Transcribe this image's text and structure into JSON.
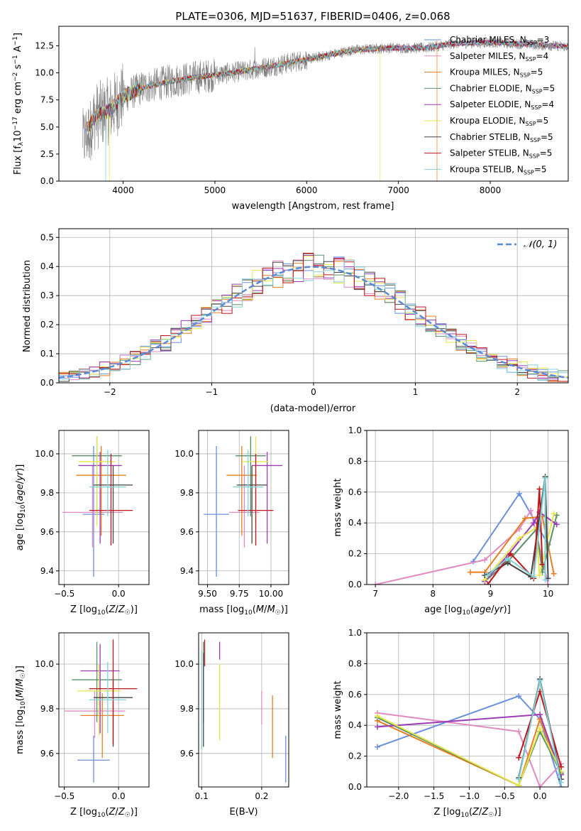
{
  "colors": [
    "#6a8fdc",
    "#e08bc0",
    "#e67e22",
    "#5a8f6a",
    "#9b3bb5",
    "#e6e64a",
    "#444444",
    "#c0151b",
    "#7fd3d8"
  ],
  "legend": [
    "Chrabier MILES",
    "Salpeter MILES",
    "Kroupa MILES",
    "Chabrier ELODIE",
    "Salpeter ELODIE",
    "Kroupa ELODIE",
    "Chabrier STELIB",
    "Salpeter STELIB",
    "Kroupa STELIB"
  ],
  "legend_nssp": [
    "3",
    "4",
    "5",
    "5",
    "4",
    "5",
    "5",
    "5",
    "5"
  ],
  "chart_data": [
    {
      "type": "line",
      "title": "PLATE=0306, MJD=51637, FIBERID=0406, z=0.068",
      "xlabel": "wavelength [Angstrom, rest frame]",
      "ylabel": "Flux [f",
      "xlim": [
        3300,
        8850
      ],
      "ylim": [
        0,
        14.3
      ],
      "xticks": [
        4000,
        5000,
        6000,
        7000,
        8000
      ],
      "yticks": [
        0.0,
        2.5,
        5.0,
        7.5,
        10.0,
        12.5
      ],
      "ytick_labels": [
        "0.0",
        "2.5",
        "5.0",
        "7.5",
        "10.0",
        "12.5"
      ],
      "spectrum_nodes": [
        [
          3550,
          4.2
        ],
        [
          3700,
          6.0
        ],
        [
          3850,
          6.5
        ],
        [
          4000,
          7.8
        ],
        [
          4200,
          8.6
        ],
        [
          4500,
          9.2
        ],
        [
          4800,
          9.6
        ],
        [
          5100,
          9.9
        ],
        [
          5400,
          10.3
        ],
        [
          5800,
          10.9
        ],
        [
          6100,
          11.4
        ],
        [
          6500,
          12.1
        ],
        [
          6900,
          12.3
        ],
        [
          7300,
          12.3
        ],
        [
          7600,
          12.7
        ],
        [
          8000,
          12.8
        ],
        [
          8500,
          12.6
        ],
        [
          8850,
          12.4
        ]
      ],
      "series": [
        {
          "name": "Chabrier MILES",
          "nssp": 3
        },
        {
          "name": "Salpeter MILES",
          "nssp": 4
        },
        {
          "name": "Kroupa MILES",
          "nssp": 5
        },
        {
          "name": "Chabrier ELODIE",
          "nssp": 5
        },
        {
          "name": "Salpeter ELODIE",
          "nssp": 4
        },
        {
          "name": "Kroupa ELODIE",
          "nssp": 5
        },
        {
          "name": "Chabrier STELIB",
          "nssp": 5
        },
        {
          "name": "Salpeter STELIB",
          "nssp": 5
        },
        {
          "name": "Kroupa STELIB",
          "nssp": 5
        }
      ]
    },
    {
      "type": "line",
      "xlabel": "(data-model)/error",
      "ylabel": "Normed distribution",
      "xlim": [
        -2.5,
        2.5
      ],
      "ylim": [
        0,
        0.53
      ],
      "xticks": [
        -2,
        -1,
        0,
        1,
        2
      ],
      "xtick_labels": [
        "−2",
        "−1",
        "0",
        "1",
        "2"
      ],
      "yticks": [
        0.0,
        0.1,
        0.2,
        0.3,
        0.4,
        0.5
      ],
      "ytick_labels": [
        "0.0",
        "0.1",
        "0.2",
        "0.3",
        "0.4",
        "0.5"
      ],
      "gaussian_label": "𝒩(0, 1)",
      "bin_width": 0.1,
      "grid": true
    },
    {
      "type": "scatter",
      "xlabel": "Z [log10(Z/Z☉)]",
      "ylabel": "age [log10(age/yr)]",
      "xlim": [
        -0.55,
        0.28
      ],
      "ylim": [
        9.33,
        10.12
      ],
      "xticks": [
        -0.5,
        0.0
      ],
      "xtick_labels": [
        "−0.5",
        "0.0"
      ],
      "yticks": [
        9.4,
        9.6,
        9.8,
        10.0
      ],
      "ytick_labels": [
        "9.4",
        "9.6",
        "9.8",
        "10.0"
      ],
      "points": [
        {
          "x": -0.23,
          "y": 9.69,
          "xerr": 0.1,
          "yerr": [
            0.32,
            0.35
          ]
        },
        {
          "x": -0.24,
          "y": 9.7,
          "xerr": 0.28,
          "yerr": [
            0.18,
            0.24
          ]
        },
        {
          "x": -0.16,
          "y": 9.89,
          "xerr": 0.23,
          "yerr": [
            0.31,
            0.15
          ]
        },
        {
          "x": -0.2,
          "y": 9.99,
          "xerr": 0.23,
          "yerr": [
            0.31,
            0.1
          ]
        },
        {
          "x": -0.17,
          "y": 9.94,
          "xerr": 0.2,
          "yerr": [
            0.4,
            0.07
          ]
        },
        {
          "x": -0.2,
          "y": 9.96,
          "xerr": 0.17,
          "yerr": [
            0.33,
            0.13
          ]
        },
        {
          "x": -0.05,
          "y": 9.84,
          "xerr": 0.18,
          "yerr": [
            0.3,
            0.1
          ]
        },
        {
          "x": -0.07,
          "y": 9.71,
          "xerr": 0.2,
          "yerr": [
            0.18,
            0.29
          ]
        },
        {
          "x": -0.1,
          "y": 9.83,
          "xerr": 0.17,
          "yerr": [
            0.15,
            0.19
          ]
        }
      ]
    },
    {
      "type": "scatter",
      "xlabel": "mass [log10(M/M☉)]",
      "ylabel": "",
      "xlim": [
        9.43,
        10.14
      ],
      "ylim": [
        9.33,
        10.12
      ],
      "xticks": [
        9.5,
        9.75,
        10.0
      ],
      "xtick_labels": [
        "9.50",
        "9.75",
        "10.00"
      ],
      "yticks": [
        9.4,
        9.6,
        9.8,
        10.0
      ],
      "ytick_labels": [
        "9.4",
        "9.6",
        "9.8",
        "10.0"
      ],
      "points": [
        {
          "x": 9.57,
          "y": 9.69,
          "xerr": 0.1,
          "yerr": [
            0.32,
            0.35
          ]
        },
        {
          "x": 9.79,
          "y": 9.7,
          "xerr": 0.12,
          "yerr": [
            0.18,
            0.24
          ]
        },
        {
          "x": 9.77,
          "y": 9.89,
          "xerr": 0.12,
          "yerr": [
            0.31,
            0.15
          ]
        },
        {
          "x": 9.84,
          "y": 9.99,
          "xerr": 0.12,
          "yerr": [
            0.31,
            0.1
          ]
        },
        {
          "x": 9.97,
          "y": 9.94,
          "xerr": 0.12,
          "yerr": [
            0.4,
            0.07
          ]
        },
        {
          "x": 9.88,
          "y": 9.96,
          "xerr": 0.1,
          "yerr": [
            0.33,
            0.13
          ]
        },
        {
          "x": 9.85,
          "y": 9.84,
          "xerr": 0.12,
          "yerr": [
            0.3,
            0.1
          ]
        },
        {
          "x": 9.88,
          "y": 9.71,
          "xerr": 0.14,
          "yerr": [
            0.18,
            0.29
          ]
        },
        {
          "x": 9.82,
          "y": 9.83,
          "xerr": 0.12,
          "yerr": [
            0.15,
            0.19
          ]
        }
      ]
    },
    {
      "type": "line",
      "xlabel": "age [log10(age/yr)]",
      "ylabel": "mass weight",
      "xlim": [
        6.85,
        10.35
      ],
      "ylim": [
        0,
        1.0
      ],
      "xticks": [
        7,
        8,
        9,
        10
      ],
      "xtick_labels": [
        "7",
        "8",
        "9",
        "10"
      ],
      "yticks": [
        0.0,
        0.2,
        0.4,
        0.6,
        0.8,
        1.0
      ],
      "ytick_labels": [
        "0.0",
        "0.2",
        "0.4",
        "0.6",
        "0.8",
        "1.0"
      ],
      "series": [
        {
          "x": [
            8.7,
            9.5,
            10.0,
            10.0
          ],
          "y": [
            0.15,
            0.59,
            0.26,
            0.26
          ]
        },
        {
          "x": [
            7.0,
            8.9,
            9.5,
            9.7,
            10.0
          ],
          "y": [
            0.0,
            0.16,
            0.36,
            0.48,
            0.0
          ]
        },
        {
          "x": [
            8.65,
            8.9,
            9.6,
            9.9,
            10.1
          ],
          "y": [
            0.08,
            0.08,
            0.43,
            0.44,
            0.07
          ]
        },
        {
          "x": [
            8.9,
            9.3,
            9.8,
            9.9,
            10.15
          ],
          "y": [
            0.02,
            0.15,
            0.36,
            0.08,
            0.45
          ]
        },
        {
          "x": [
            8.9,
            9.3,
            9.75,
            9.85,
            10.15
          ],
          "y": [
            0.02,
            0.19,
            0.4,
            0.47,
            0.39
          ]
        },
        {
          "x": [
            8.9,
            9.5,
            9.8,
            9.85,
            10.1
          ],
          "y": [
            0.03,
            0.3,
            0.37,
            0.06,
            0.46
          ]
        },
        {
          "x": [
            8.9,
            9.3,
            9.7,
            9.95,
            10.0
          ],
          "y": [
            0.06,
            0.14,
            0.05,
            0.7,
            0.04
          ]
        },
        {
          "x": [
            8.95,
            9.35,
            9.75,
            9.85,
            9.9
          ],
          "y": [
            0.0,
            0.2,
            0.04,
            0.62,
            0.13
          ]
        },
        {
          "x": [
            8.95,
            9.3,
            9.75,
            9.95,
            9.95
          ],
          "y": [
            0.06,
            0.17,
            0.05,
            0.69,
            0.03
          ]
        }
      ]
    },
    {
      "type": "scatter",
      "xlabel": "Z [log10(Z/Z☉)]",
      "ylabel": "mass [log10(M/M☉)]",
      "xlim": [
        -0.55,
        0.28
      ],
      "ylim": [
        9.45,
        10.14
      ],
      "xticks": [
        -0.5,
        0.0
      ],
      "xtick_labels": [
        "−0.5",
        "0.0"
      ],
      "yticks": [
        9.6,
        9.8,
        10.0
      ],
      "ytick_labels": [
        "9.6",
        "9.8",
        "10.0"
      ],
      "points": [
        {
          "x": -0.23,
          "y": 9.57,
          "xerr": 0.15,
          "yerr": [
            0.1,
            0.11
          ]
        },
        {
          "x": -0.22,
          "y": 9.79,
          "xerr": 0.28,
          "yerr": [
            0.12,
            0.09
          ]
        },
        {
          "x": -0.15,
          "y": 9.77,
          "xerr": 0.2,
          "yerr": [
            0.19,
            0.1
          ]
        },
        {
          "x": -0.2,
          "y": 9.93,
          "xerr": 0.23,
          "yerr": [
            0.19,
            0.17
          ]
        },
        {
          "x": -0.17,
          "y": 9.97,
          "xerr": 0.18,
          "yerr": [
            0.28,
            0.12
          ]
        },
        {
          "x": -0.18,
          "y": 9.88,
          "xerr": 0.2,
          "yerr": [
            0.2,
            0.12
          ]
        },
        {
          "x": -0.05,
          "y": 9.85,
          "xerr": 0.18,
          "yerr": [
            0.22,
            0.08
          ]
        },
        {
          "x": -0.05,
          "y": 9.89,
          "xerr": 0.22,
          "yerr": [
            0.25,
            0.22
          ]
        },
        {
          "x": -0.1,
          "y": 9.84,
          "xerr": 0.17,
          "yerr": [
            0.15,
            0.17
          ]
        }
      ]
    },
    {
      "type": "scatter",
      "xlabel": "E(B-V)",
      "ylabel": "",
      "xlim": [
        0.095,
        0.245
      ],
      "ylim": [
        9.45,
        10.14
      ],
      "xticks": [
        0.1,
        0.2
      ],
      "xtick_labels": [
        "0.1",
        "0.2"
      ],
      "yticks": [
        9.6,
        9.8,
        10.0
      ],
      "ytick_labels": [
        "9.6",
        "9.8",
        "10.0"
      ],
      "points": [
        {
          "x": 0.24,
          "y": 9.57,
          "yerr": [
            0.1,
            0.11
          ]
        },
        {
          "x": 0.2,
          "y": 9.79,
          "yerr": [
            0.06,
            0.09
          ]
        },
        {
          "x": 0.218,
          "y": 9.77,
          "yerr": [
            0.19,
            0.09
          ]
        },
        {
          "x": 0.103,
          "y": 9.93,
          "yerr": [
            0.19,
            0.17
          ]
        },
        {
          "x": 0.13,
          "y": 10.06,
          "yerr": [
            0.04,
            0.04
          ]
        },
        {
          "x": 0.13,
          "y": 9.88,
          "yerr": [
            0.22,
            0.12
          ]
        },
        {
          "x": 0.103,
          "y": 9.85,
          "yerr": [
            0.22,
            0.2
          ]
        },
        {
          "x": 0.105,
          "y": 10.05,
          "yerr": [
            0.06,
            0.06
          ]
        },
        {
          "x": 0.1,
          "y": 9.84,
          "yerr": [
            0.22,
            0.22
          ]
        }
      ]
    },
    {
      "type": "line",
      "xlabel": "Z [log10(Z/Z☉)]",
      "ylabel": "mass weight",
      "xlim": [
        -2.45,
        0.4
      ],
      "ylim": [
        0,
        1.0
      ],
      "xticks": [
        -2.0,
        -1.5,
        -1.0,
        -0.5,
        0.0
      ],
      "xtick_labels": [
        "−2.0",
        "−1.5",
        "−1.0",
        "−0.5",
        "0.0"
      ],
      "yticks": [
        0.0,
        0.2,
        0.4,
        0.6,
        0.8,
        1.0
      ],
      "ytick_labels": [
        "0.0",
        "0.2",
        "0.4",
        "0.6",
        "0.8",
        "1.0"
      ],
      "series": [
        {
          "x": [
            -2.3,
            -0.3,
            0.0,
            0.3
          ],
          "y": [
            0.26,
            0.59,
            0.44,
            0.0
          ]
        },
        {
          "x": [
            -2.3,
            -0.3,
            0.0,
            0.3
          ],
          "y": [
            0.48,
            0.36,
            0.0,
            0.15
          ]
        },
        {
          "x": [
            -2.3,
            -0.3,
            0.0,
            0.3
          ],
          "y": [
            0.43,
            0.01,
            0.44,
            0.08
          ]
        },
        {
          "x": [
            -2.3,
            -0.3,
            0.0,
            0.3
          ],
          "y": [
            0.45,
            0.01,
            0.36,
            0.09
          ]
        },
        {
          "x": [
            -2.3,
            0.0,
            0.3
          ],
          "y": [
            0.39,
            0.47,
            0.08
          ]
        },
        {
          "x": [
            -2.3,
            -0.3,
            0.0,
            0.3
          ],
          "y": [
            0.46,
            0.01,
            0.38,
            0.1
          ]
        },
        {
          "x": [
            -0.3,
            0.0,
            0.3
          ],
          "y": [
            0.06,
            0.7,
            0.05
          ]
        },
        {
          "x": [
            -0.3,
            0.0,
            0.3
          ],
          "y": [
            0.19,
            0.62,
            0.13
          ]
        },
        {
          "x": [
            -0.3,
            0.0,
            0.3
          ],
          "y": [
            0.05,
            0.69,
            0.03
          ]
        }
      ]
    }
  ]
}
